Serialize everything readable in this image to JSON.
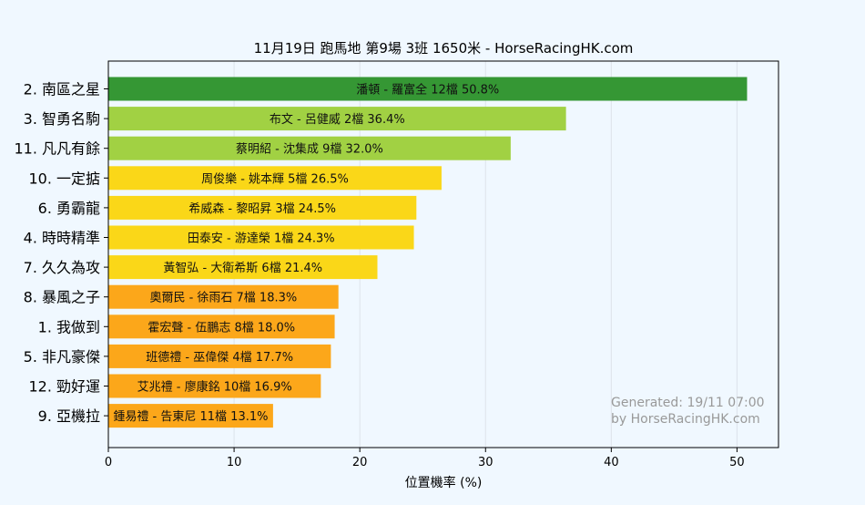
{
  "chart_data": {
    "type": "bar",
    "orientation": "horizontal",
    "title": "11月19日  跑馬地  第9場  3班  1650米 - HorseRacingHK.com",
    "xlabel": "位置機率 (%)",
    "ylabel": "",
    "xlim": [
      0,
      53.3
    ],
    "xticks": [
      0,
      10,
      20,
      30,
      40,
      50
    ],
    "grid": "vertical",
    "categories": [
      "2. 南區之星",
      "3. 智勇名駒",
      "11. 凡凡有餘",
      "10. 一定掂",
      "6. 勇霸龍",
      "4. 時時精準",
      "7. 久久為攻",
      "8. 暴風之子",
      "1. 我做到",
      "5. 非凡豪傑",
      "12. 勁好運",
      "9. 亞機拉"
    ],
    "values": [
      50.8,
      36.4,
      32.0,
      26.5,
      24.5,
      24.3,
      21.4,
      18.3,
      18.0,
      17.7,
      16.9,
      13.1
    ],
    "bar_labels": [
      "潘頓 - 羅富全 12檔  50.8%",
      "布文 - 呂健威 2檔  36.4%",
      "蔡明紹 - 沈集成 9檔  32.0%",
      "周俊樂 - 姚本輝 5檔  26.5%",
      "希威森 - 黎昭昇 3檔  24.5%",
      "田泰安 - 游達榮 1檔  24.3%",
      "黃智弘 - 大衛希斯 6檔  21.4%",
      "奧爾民 - 徐雨石 7檔  18.3%",
      "霍宏聲 - 伍鵬志 8檔  18.0%",
      "班德禮 - 巫偉傑 4檔  17.7%",
      "艾兆禮 - 廖康銘 10檔  16.9%",
      "鍾易禮 - 告東尼 11檔  13.1%"
    ],
    "bar_colors": [
      "#359734",
      "#a1d143",
      "#a1d143",
      "#fad718",
      "#fad718",
      "#fad718",
      "#fad718",
      "#fca71a",
      "#fca71a",
      "#fca71a",
      "#fca71a",
      "#fca71a"
    ],
    "annotation": [
      "Generated: 19/11 07:00",
      "by HorseRacingHK.com"
    ],
    "colors": {
      "background": "#f0f8ff",
      "plot_background": "#f0f8ff",
      "grid": "#dde3ea",
      "annotation": "#999999",
      "text": "#000000"
    }
  }
}
